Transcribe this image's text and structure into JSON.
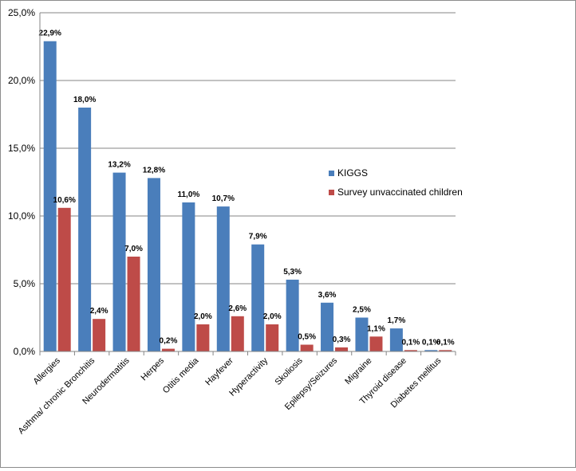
{
  "chart_data": {
    "type": "bar",
    "title": "",
    "xlabel": "",
    "ylabel": "",
    "ylim": [
      0,
      25
    ],
    "yticks": [
      "0,0%",
      "5,0%",
      "10,0%",
      "15,0%",
      "20,0%",
      "25,0%"
    ],
    "categories": [
      "Allergies",
      "Asthma/ chronic Bronchitis",
      "Neurodermatitis",
      "Herpes",
      "Otitis media",
      "Hayfever",
      "Hyperactivity",
      "Skoliosis",
      "Epilepsy/Seizures",
      "Migraine",
      "Thyroid disease",
      "Diabetes mellitus"
    ],
    "series": [
      {
        "name": "KIGGS",
        "color": "#4a7ebb",
        "values": [
          22.9,
          18.0,
          13.2,
          12.8,
          11.0,
          10.7,
          7.9,
          5.3,
          3.6,
          2.5,
          1.7,
          0.1
        ],
        "labels": [
          "22,9%",
          "18,0%",
          "13,2%",
          "12,8%",
          "11,0%",
          "10,7%",
          "7,9%",
          "5,3%",
          "3,6%",
          "2,5%",
          "1,7%",
          "0,1%"
        ]
      },
      {
        "name": "Survey unvaccinated children",
        "color": "#be4b48",
        "values": [
          10.6,
          2.4,
          7.0,
          0.2,
          2.0,
          2.6,
          2.0,
          0.5,
          0.3,
          1.1,
          0.1,
          0.1
        ],
        "labels": [
          "10,6%",
          "2,4%",
          "7,0%",
          "0,2%",
          "2,0%",
          "2,6%",
          "2,0%",
          "0,5%",
          "0,3%",
          "1,1%",
          "0,1%",
          "0,1%"
        ]
      }
    ],
    "grid": true,
    "legend_position": "right"
  }
}
